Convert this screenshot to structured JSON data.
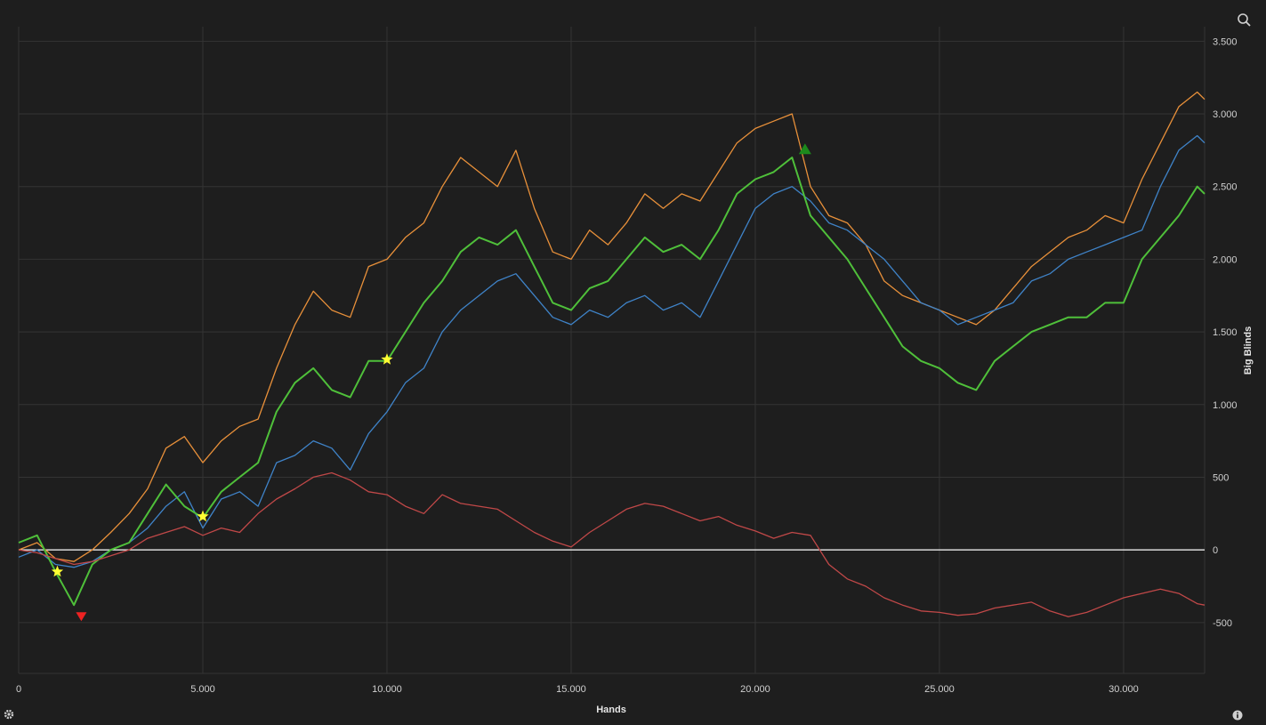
{
  "chart_data": {
    "type": "line",
    "xlabel": "Hands",
    "ylabel": "Big Blinds",
    "xlim": [
      0,
      32200
    ],
    "ylim": [
      -850,
      3600
    ],
    "x_ticks": [
      {
        "value": 0,
        "label": "0"
      },
      {
        "value": 5000,
        "label": "5.000"
      },
      {
        "value": 10000,
        "label": "10.000"
      },
      {
        "value": 15000,
        "label": "15.000"
      },
      {
        "value": 20000,
        "label": "20.000"
      },
      {
        "value": 25000,
        "label": "25.000"
      },
      {
        "value": 30000,
        "label": "30.000"
      }
    ],
    "y_ticks": [
      {
        "value": -500,
        "label": "-500"
      },
      {
        "value": 0,
        "label": "0"
      },
      {
        "value": 500,
        "label": "500"
      },
      {
        "value": 1000,
        "label": "1.000"
      },
      {
        "value": 1500,
        "label": "1.500"
      },
      {
        "value": 2000,
        "label": "2.000"
      },
      {
        "value": 2500,
        "label": "2.500"
      },
      {
        "value": 3000,
        "label": "3.000"
      },
      {
        "value": 3500,
        "label": "3.500"
      }
    ],
    "grid": true,
    "legend": "none",
    "background": "#1e1e1e",
    "series": [
      {
        "color": "#e8903a",
        "width": 1.3,
        "x": [
          0,
          500,
          1000,
          1500,
          2000,
          2500,
          3000,
          3500,
          4000,
          4500,
          5000,
          5500,
          6000,
          6500,
          7000,
          7500,
          8000,
          8500,
          9000,
          9500,
          10000,
          10500,
          11000,
          11500,
          12000,
          12500,
          13000,
          13500,
          14000,
          14500,
          15000,
          15500,
          16000,
          16500,
          17000,
          17500,
          18000,
          18500,
          19000,
          19500,
          20000,
          20500,
          21000,
          21500,
          22000,
          22500,
          23000,
          23500,
          24000,
          24500,
          25000,
          25500,
          26000,
          26500,
          27000,
          27500,
          28000,
          28500,
          29000,
          29500,
          30000,
          30500,
          31000,
          31500,
          32000,
          32200
        ],
        "y": [
          0,
          50,
          -60,
          -80,
          0,
          120,
          250,
          420,
          700,
          780,
          600,
          750,
          850,
          900,
          1250,
          1550,
          1780,
          1650,
          1600,
          1950,
          2000,
          2150,
          2250,
          2500,
          2700,
          2600,
          2500,
          2750,
          2350,
          2050,
          2000,
          2200,
          2100,
          2250,
          2450,
          2350,
          2450,
          2400,
          2600,
          2800,
          2900,
          2950,
          3000,
          2500,
          2300,
          2250,
          2100,
          1850,
          1750,
          1700,
          1650,
          1600,
          1550,
          1650,
          1800,
          1950,
          2050,
          2150,
          2200,
          2300,
          2250,
          2550,
          2800,
          3050,
          3150,
          3100
        ]
      },
      {
        "color": "#3f83c8",
        "width": 1.3,
        "x": [
          0,
          500,
          1000,
          1500,
          2000,
          2500,
          3000,
          3500,
          4000,
          4500,
          5000,
          5500,
          6000,
          6500,
          7000,
          7500,
          8000,
          8500,
          9000,
          9500,
          10000,
          10500,
          11000,
          11500,
          12000,
          12500,
          13000,
          13500,
          14000,
          14500,
          15000,
          15500,
          16000,
          16500,
          17000,
          17500,
          18000,
          18500,
          19000,
          19500,
          20000,
          20500,
          21000,
          21500,
          22000,
          22500,
          23000,
          23500,
          24000,
          24500,
          25000,
          25500,
          26000,
          26500,
          27000,
          27500,
          28000,
          28500,
          29000,
          29500,
          30000,
          30500,
          31000,
          31500,
          32000,
          32200
        ],
        "y": [
          -50,
          0,
          -100,
          -120,
          -80,
          0,
          50,
          150,
          300,
          400,
          150,
          350,
          400,
          300,
          600,
          650,
          750,
          700,
          550,
          800,
          950,
          1150,
          1250,
          1500,
          1650,
          1750,
          1850,
          1900,
          1750,
          1600,
          1550,
          1650,
          1600,
          1700,
          1750,
          1650,
          1700,
          1600,
          1850,
          2100,
          2350,
          2450,
          2500,
          2400,
          2250,
          2200,
          2100,
          2000,
          1850,
          1700,
          1650,
          1550,
          1600,
          1650,
          1700,
          1850,
          1900,
          2000,
          2050,
          2100,
          2150,
          2200,
          2500,
          2750,
          2850,
          2800
        ]
      },
      {
        "color": "#4fc03a",
        "width": 2,
        "x": [
          0,
          500,
          1000,
          1500,
          2000,
          2500,
          3000,
          3500,
          4000,
          4500,
          5000,
          5500,
          6000,
          6500,
          7000,
          7500,
          8000,
          8500,
          9000,
          9500,
          10000,
          10500,
          11000,
          11500,
          12000,
          12500,
          13000,
          13500,
          14000,
          14500,
          15000,
          15500,
          16000,
          16500,
          17000,
          17500,
          18000,
          18500,
          19000,
          19500,
          20000,
          20500,
          21000,
          21500,
          22000,
          22500,
          23000,
          23500,
          24000,
          24500,
          25000,
          25500,
          26000,
          26500,
          27000,
          27500,
          28000,
          28500,
          29000,
          29500,
          30000,
          30500,
          31000,
          31500,
          32000,
          32200
        ],
        "y": [
          50,
          100,
          -150,
          -380,
          -100,
          0,
          50,
          250,
          450,
          300,
          220,
          400,
          500,
          600,
          950,
          1150,
          1250,
          1100,
          1050,
          1300,
          1300,
          1500,
          1700,
          1850,
          2050,
          2150,
          2100,
          2200,
          1950,
          1700,
          1650,
          1800,
          1850,
          2000,
          2150,
          2050,
          2100,
          2000,
          2200,
          2450,
          2550,
          2600,
          2700,
          2300,
          2150,
          2000,
          1800,
          1600,
          1400,
          1300,
          1250,
          1150,
          1100,
          1300,
          1400,
          1500,
          1550,
          1600,
          1600,
          1700,
          1700,
          2000,
          2150,
          2300,
          2500,
          2450
        ]
      },
      {
        "color": "#c04848",
        "width": 1.3,
        "x": [
          0,
          500,
          1000,
          1500,
          2000,
          2500,
          3000,
          3500,
          4000,
          4500,
          5000,
          5500,
          6000,
          6500,
          7000,
          7500,
          8000,
          8500,
          9000,
          9500,
          10000,
          10500,
          11000,
          11500,
          12000,
          12500,
          13000,
          13500,
          14000,
          14500,
          15000,
          15500,
          16000,
          16500,
          17000,
          17500,
          18000,
          18500,
          19000,
          19500,
          20000,
          20500,
          21000,
          21500,
          22000,
          22500,
          23000,
          23500,
          24000,
          24500,
          25000,
          25500,
          26000,
          26500,
          27000,
          27500,
          28000,
          28500,
          29000,
          29500,
          30000,
          30500,
          31000,
          31500,
          32000,
          32200
        ],
        "y": [
          0,
          -20,
          -60,
          -100,
          -80,
          -40,
          0,
          80,
          120,
          160,
          100,
          150,
          120,
          250,
          350,
          420,
          500,
          530,
          480,
          400,
          380,
          300,
          250,
          380,
          320,
          300,
          280,
          200,
          120,
          60,
          20,
          120,
          200,
          280,
          320,
          300,
          250,
          200,
          230,
          170,
          130,
          80,
          120,
          100,
          -100,
          -200,
          -250,
          -330,
          -380,
          -420,
          -430,
          -450,
          -440,
          -400,
          -380,
          -360,
          -420,
          -460,
          -430,
          -380,
          -330,
          -300,
          -270,
          -300,
          -370,
          -380
        ]
      }
    ],
    "markers": [
      {
        "symbol": "star",
        "color": "#ffff33",
        "x": 1050,
        "y": -150
      },
      {
        "symbol": "star",
        "color": "#ffff33",
        "x": 5000,
        "y": 230
      },
      {
        "symbol": "star",
        "color": "#ffff33",
        "x": 10000,
        "y": 1310
      },
      {
        "symbol": "triangle-down",
        "color": "#ee2222",
        "x": 1700,
        "y": -460
      },
      {
        "symbol": "triangle-up",
        "color": "#1c8a1c",
        "x": 21350,
        "y": 2760
      }
    ]
  },
  "icons": {
    "zoom": "zoom-icon",
    "settings": "gear-icon",
    "info": "info-icon"
  }
}
